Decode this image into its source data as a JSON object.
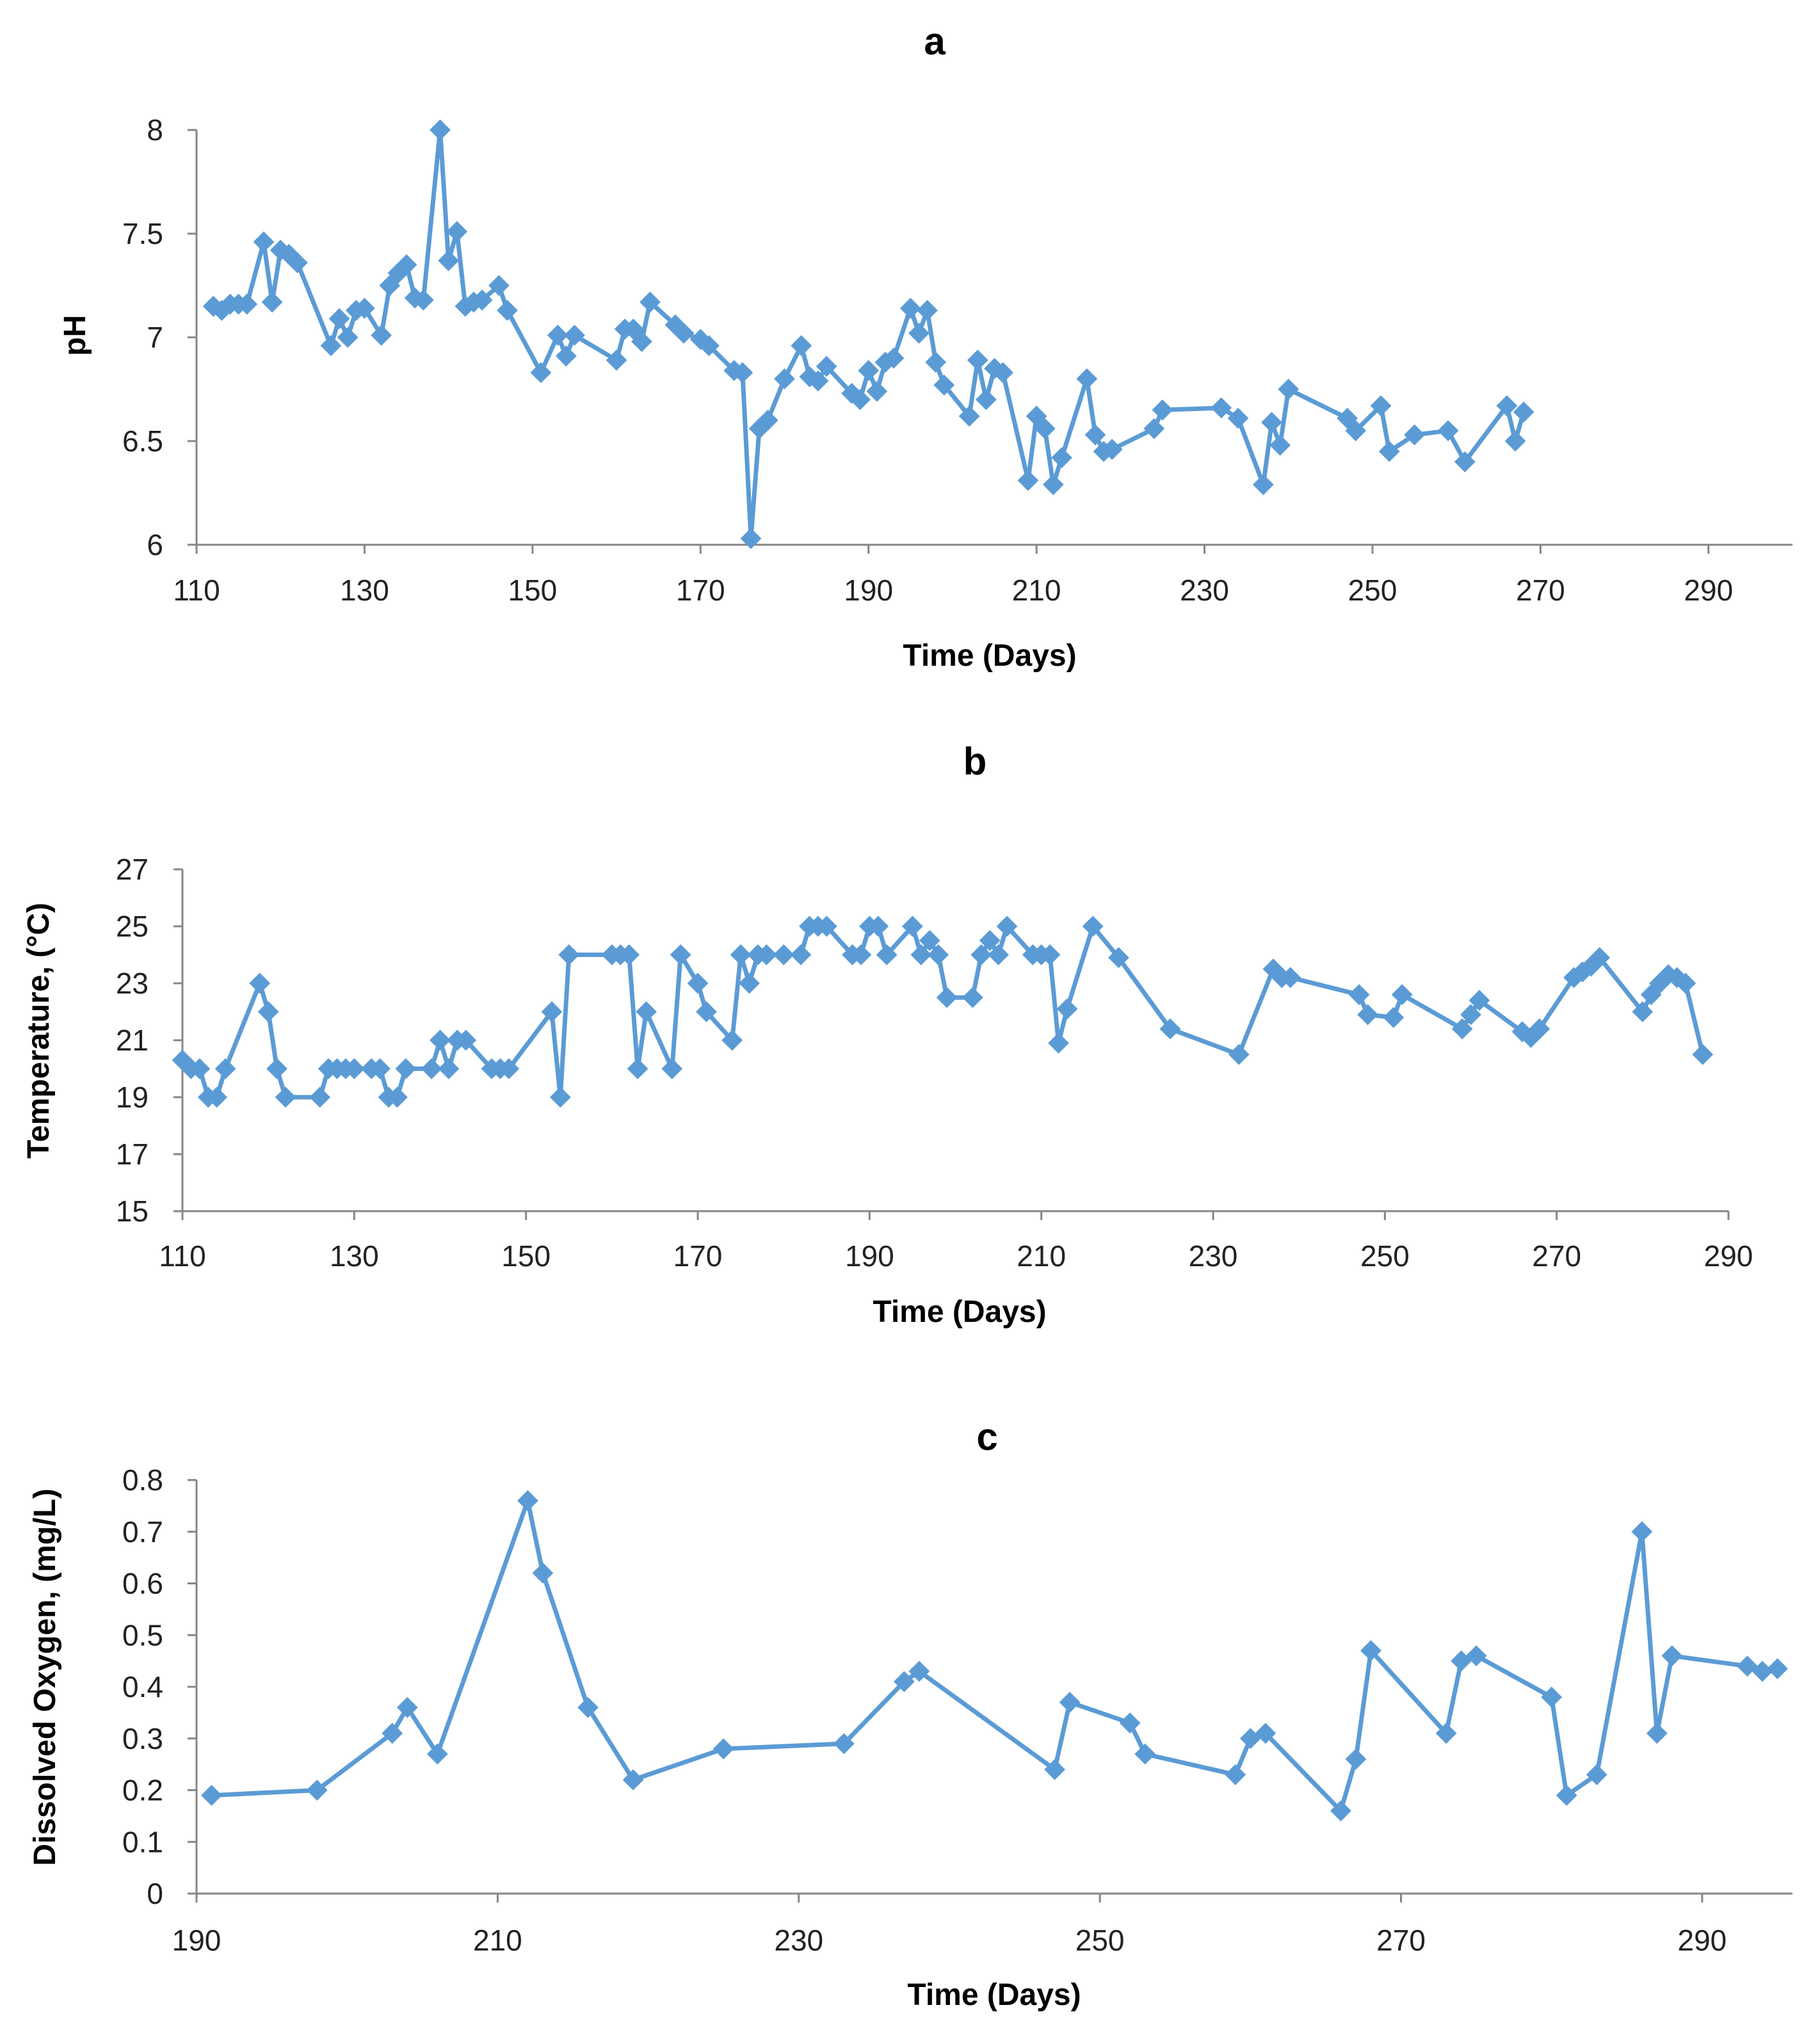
{
  "colors": {
    "series": "#5B9BD5",
    "axis": "#868686",
    "text": "#000000",
    "background": "#FFFFFF"
  },
  "chart_data": [
    {
      "panel": "a",
      "type": "line",
      "marker": "diamond",
      "xlabel": "Time (Days)",
      "ylabel": "pH",
      "xlim": [
        110,
        300
      ],
      "ylim": [
        6,
        8
      ],
      "xticks": [
        110,
        130,
        150,
        170,
        190,
        210,
        230,
        250,
        270,
        290
      ],
      "yticks": [
        6,
        6.5,
        7,
        7.5,
        8
      ],
      "ytick_labels": [
        "6",
        "6.5",
        "7",
        "7.5",
        "8"
      ],
      "grid": false,
      "x": [
        112,
        113,
        114,
        115,
        116,
        118,
        119,
        120,
        121,
        122,
        126,
        127,
        128,
        129,
        130,
        132,
        133,
        134,
        135,
        136,
        137,
        139,
        140,
        141,
        142,
        143,
        144,
        146,
        147,
        151,
        153,
        154,
        155,
        160,
        161,
        162,
        163,
        164,
        167,
        168,
        170,
        171,
        174,
        175,
        176,
        177,
        178,
        180,
        182,
        183,
        184,
        185,
        188,
        189,
        190,
        191,
        192,
        193,
        195,
        196,
        197,
        198,
        199,
        202,
        203,
        204,
        205,
        206,
        209,
        210,
        211,
        212,
        213,
        216,
        217,
        218,
        219,
        224,
        225,
        232,
        234,
        237,
        238,
        239,
        240,
        247,
        248,
        251,
        252,
        255,
        259,
        261,
        266,
        267,
        268
      ],
      "y": [
        7.15,
        7.13,
        7.16,
        7.16,
        7.16,
        7.46,
        7.17,
        7.42,
        7.4,
        7.36,
        6.96,
        7.09,
        7.0,
        7.13,
        7.14,
        7.01,
        7.25,
        7.31,
        7.35,
        7.19,
        7.18,
        8.0,
        7.37,
        7.51,
        7.15,
        7.17,
        7.18,
        7.25,
        7.13,
        6.83,
        7.01,
        6.91,
        7.01,
        6.89,
        7.04,
        7.04,
        6.98,
        7.17,
        7.06,
        7.02,
        6.99,
        6.96,
        6.84,
        6.83,
        6.03,
        6.56,
        6.6,
        6.8,
        6.96,
        6.81,
        6.79,
        6.86,
        6.73,
        6.7,
        6.84,
        6.74,
        6.88,
        6.9,
        7.14,
        7.02,
        7.13,
        6.88,
        6.77,
        6.62,
        6.89,
        6.7,
        6.85,
        6.83,
        6.31,
        6.62,
        6.56,
        6.29,
        6.42,
        6.8,
        6.53,
        6.45,
        6.46,
        6.56,
        6.65,
        6.66,
        6.61,
        6.29,
        6.59,
        6.48,
        6.75,
        6.61,
        6.55,
        6.67,
        6.45,
        6.53,
        6.55,
        6.4,
        6.67,
        6.5,
        6.64
      ]
    },
    {
      "panel": "b",
      "type": "line",
      "marker": "diamond",
      "xlabel": "Time (Days)",
      "ylabel": "Temperature, (°C)",
      "xlim": [
        110,
        290
      ],
      "ylim": [
        15,
        27
      ],
      "xticks": [
        110,
        130,
        150,
        170,
        190,
        210,
        230,
        250,
        270,
        290
      ],
      "yticks": [
        15,
        17,
        19,
        21,
        23,
        25,
        27
      ],
      "ytick_labels": [
        "15",
        "17",
        "19",
        "21",
        "23",
        "25",
        "27"
      ],
      "grid": false,
      "x": [
        110,
        111,
        112,
        113,
        114,
        115,
        119,
        120,
        121,
        122,
        126,
        127,
        128,
        129,
        130,
        132,
        133,
        134,
        135,
        136,
        139,
        140,
        141,
        142,
        143,
        146,
        147,
        148,
        153,
        154,
        155,
        160,
        161,
        162,
        163,
        164,
        167,
        168,
        170,
        171,
        174,
        175,
        176,
        177,
        178,
        180,
        182,
        183,
        184,
        185,
        188,
        189,
        190,
        191,
        192,
        195,
        196,
        197,
        198,
        199,
        202,
        203,
        204,
        205,
        206,
        209,
        210,
        211,
        212,
        213,
        216,
        219,
        225,
        233,
        237,
        238,
        239,
        247,
        248,
        251,
        252,
        259,
        260,
        261,
        266,
        267,
        268,
        272,
        273,
        274,
        275,
        280,
        281,
        282,
        283,
        284,
        285,
        287
      ],
      "y": [
        20.3,
        20,
        20,
        19,
        19,
        20,
        23,
        22,
        20,
        19,
        19,
        20,
        20,
        20,
        20,
        20,
        20,
        19,
        19,
        20,
        20,
        21,
        20,
        21,
        21,
        20,
        20,
        20,
        22,
        19,
        24,
        24,
        24,
        24,
        20,
        22,
        20,
        24,
        23,
        22,
        21,
        24,
        23,
        24,
        24,
        24,
        24,
        25,
        25,
        25,
        24,
        24,
        25,
        25,
        24,
        25,
        24,
        24.5,
        24,
        22.5,
        22.5,
        24,
        24.5,
        24,
        25,
        24,
        24,
        24,
        20.9,
        22.1,
        25,
        23.9,
        21.4,
        20.5,
        23.5,
        23.2,
        23.2,
        22.6,
        21.9,
        21.8,
        22.6,
        21.4,
        21.9,
        22.4,
        21.3,
        21.1,
        21.4,
        23.2,
        23.4,
        23.6,
        23.9,
        22,
        22.6,
        23,
        23.3,
        23.2,
        23,
        20.5
      ]
    },
    {
      "panel": "c",
      "type": "line",
      "marker": "diamond",
      "xlabel": "Time (Days)",
      "ylabel": "Dissolved Oxygen, (mg/L)",
      "xlim": [
        190,
        296
      ],
      "ylim": [
        0,
        0.8
      ],
      "xticks": [
        190,
        210,
        230,
        250,
        270,
        290
      ],
      "yticks": [
        0,
        0.1,
        0.2,
        0.3,
        0.4,
        0.5,
        0.6,
        0.7,
        0.8
      ],
      "ytick_labels": [
        "0",
        "0.1",
        "0.2",
        "0.3",
        "0.4",
        "0.5",
        "0.6",
        "0.7",
        "0.8"
      ],
      "grid": false,
      "x": [
        191,
        198,
        203,
        204,
        206,
        212,
        213,
        216,
        219,
        225,
        233,
        237,
        238,
        247,
        248,
        252,
        253,
        259,
        260,
        261,
        266,
        267,
        268,
        273,
        274,
        275,
        280,
        281,
        283,
        286,
        287,
        288,
        293,
        294,
        295
      ],
      "y": [
        0.19,
        0.2,
        0.31,
        0.36,
        0.27,
        0.76,
        0.62,
        0.36,
        0.22,
        0.28,
        0.29,
        0.41,
        0.43,
        0.24,
        0.37,
        0.33,
        0.27,
        0.23,
        0.3,
        0.31,
        0.16,
        0.26,
        0.47,
        0.31,
        0.45,
        0.46,
        0.38,
        0.19,
        0.23,
        0.7,
        0.31,
        0.46,
        0.44,
        0.43,
        0.435
      ]
    }
  ],
  "panels": {
    "a": {
      "label": "a"
    },
    "b": {
      "label": "b"
    },
    "c": {
      "label": "c"
    }
  }
}
